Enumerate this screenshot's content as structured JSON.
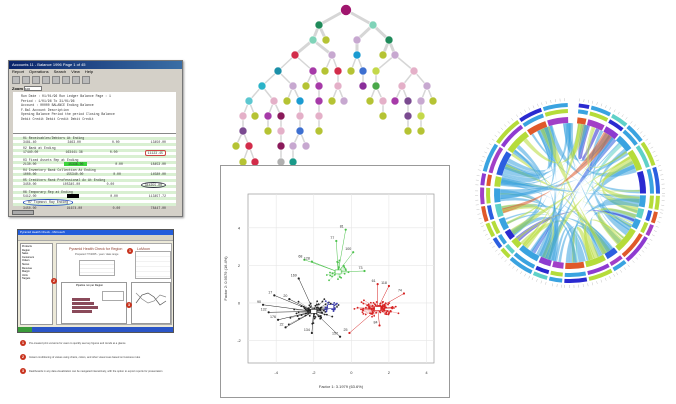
{
  "report_window": {
    "title": "Accounts 11 - Balance 1996 Page 1 of 45",
    "menu": [
      "Report",
      "Operations",
      "Search",
      "View",
      "Help"
    ],
    "zoom_label": "Zoom",
    "zoom_value": "100",
    "header_lines": [
      "Run Date : 01/01/96          Run Ledger Balance              Page : 1",
      "Period   : 1/01/96 To 31/01/96",
      "Account  : 00000 BALANCE        Ending Balance",
      "F.Bal Account Description",
      "     Opening Balance       Period the period       Closing Balance",
      "     Debit    Credit       Debit    Credit         Debit    Credit"
    ],
    "rows": [
      {
        "label": "01 Receivables/Debtors At Ending",
        "a": "3481.40",
        "b": "3463.00",
        "c": "0.00",
        "d": "13450.00",
        "style": "plain"
      },
      {
        "label": "02 Bank at Ending",
        "a": "17440.00",
        "b": "163441.36",
        "c": "0.00",
        "d": "11123.45",
        "style": "ring"
      },
      {
        "label": "03 Fixed Assets Rep at Ending",
        "a": "2130.00",
        "b": "15336.00",
        "c": "0.00",
        "d": "18453.00",
        "style": "green"
      },
      {
        "label": "04 Inventory Bank Collection At Ending",
        "a": "1000.00",
        "b": "155340.00",
        "c": "0.00",
        "d": "14580.00",
        "style": "plain"
      },
      {
        "label": "05 Creditors Rank Professional Ac At Ending",
        "a": "3450.00",
        "b": "105345.00",
        "c": "0.00",
        "d": "344355.00",
        "style": "oval"
      },
      {
        "label": "06 Temporary Rep at Ending",
        "a": "5412.00",
        "b": "",
        "c": "0.00",
        "d": "113457.72",
        "style": "black"
      },
      {
        "label": "07 Topmost Ray Ending",
        "a": "3450.00",
        "b": "91674.00",
        "c": "0.00",
        "d": "78447.00",
        "style": "blue"
      }
    ]
  },
  "dashboard_window": {
    "title": "Pyramid Health Check - Microsoft",
    "heading": "Pyramid Health Check for Region",
    "subheading": "Prepared 7/7/2005 - year / date range",
    "right_heading": "LoMoon",
    "chart_title": "Pipeline run per Region",
    "sidebar_items": [
      "Products",
      "Region",
      "Sales",
      "Customers",
      "Orders",
      "Stores",
      "Revenue",
      "Margin",
      "Units",
      "Targets"
    ],
    "captions": [
      {
        "num": "1",
        "text": "Pre-created print versions for users to quickly see key figures and trends at a glance"
      },
      {
        "num": "2",
        "text": "Instant conditioning of values using charts, colors, and other visual cues based on business rules"
      },
      {
        "num": "3",
        "text": "Dashboards in any data visualization can be navigated interactively, with the option to export reports for presentation"
      }
    ]
  },
  "scatter": {
    "chart_data": {
      "type": "scatter",
      "xlabel": "Factor 1: 3.1979 (63.6%)",
      "ylabel": "Factor 2: 0.9579 (16.4%)",
      "xlim": [
        -5.5,
        4.4
      ],
      "ylim": [
        -3.2,
        5.8
      ],
      "xticks": [
        -4,
        -2,
        0,
        2,
        4
      ],
      "yticks": [
        -2,
        0,
        2,
        4
      ],
      "grid": true,
      "clusters": [
        {
          "name": "black",
          "color": "#222222",
          "center": [
            -2.0,
            -0.45
          ],
          "spread": [
            1.0,
            0.5
          ],
          "n": 70
        },
        {
          "name": "blue",
          "color": "#3a3aa8",
          "center": [
            -1.1,
            -0.2
          ],
          "spread": [
            0.35,
            0.35
          ],
          "n": 25
        },
        {
          "name": "green",
          "color": "#4cc24c",
          "center": [
            -0.7,
            1.65
          ],
          "spread": [
            0.5,
            0.5
          ],
          "n": 30
        },
        {
          "name": "red",
          "color": "#d62020",
          "center": [
            1.4,
            -0.3
          ],
          "spread": [
            0.9,
            0.35
          ],
          "n": 90
        }
      ],
      "labeled_points": [
        {
          "label": "81",
          "x": -0.3,
          "y": 3.9,
          "cluster": "green"
        },
        {
          "label": "77",
          "x": -0.8,
          "y": 3.3,
          "cluster": "green"
        },
        {
          "label": "100",
          "x": 0.1,
          "y": 2.7,
          "cluster": "green"
        },
        {
          "label": "68",
          "x": -2.5,
          "y": 2.3,
          "cluster": "green"
        },
        {
          "label": "128",
          "x": -2.1,
          "y": 2.2,
          "cluster": "green"
        },
        {
          "label": "73",
          "x": 0.7,
          "y": 1.7,
          "cluster": "green"
        },
        {
          "label": "169",
          "x": -2.8,
          "y": 1.3,
          "cluster": "black"
        },
        {
          "label": "61",
          "x": 1.4,
          "y": 1.0,
          "cluster": "red"
        },
        {
          "label": "118",
          "x": 2.0,
          "y": 0.9,
          "cluster": "red"
        },
        {
          "label": "74",
          "x": 2.8,
          "y": 0.5,
          "cluster": "red"
        },
        {
          "label": "17",
          "x": -4.1,
          "y": 0.4,
          "cluster": "black"
        },
        {
          "label": "20",
          "x": -3.3,
          "y": 0.2,
          "cluster": "black"
        },
        {
          "label": "90",
          "x": -4.7,
          "y": -0.1,
          "cluster": "black"
        },
        {
          "label": "132",
          "x": -4.4,
          "y": -0.5,
          "cluster": "black"
        },
        {
          "label": "176",
          "x": -3.9,
          "y": -0.9,
          "cluster": "black"
        },
        {
          "label": "22",
          "x": -3.5,
          "y": -1.3,
          "cluster": "black"
        },
        {
          "label": "134",
          "x": -2.1,
          "y": -1.6,
          "cluster": "black"
        },
        {
          "label": "157",
          "x": -0.6,
          "y": -1.8,
          "cluster": "black"
        },
        {
          "label": "25",
          "x": -0.1,
          "y": -1.6,
          "cluster": "red"
        },
        {
          "label": "84",
          "x": 1.5,
          "y": -1.2,
          "cluster": "red"
        }
      ]
    }
  },
  "colors": {
    "tree_edge": "#d6d6d6",
    "chord_blue": "#3ba3e0",
    "chord_green": "#b7dc3a"
  }
}
